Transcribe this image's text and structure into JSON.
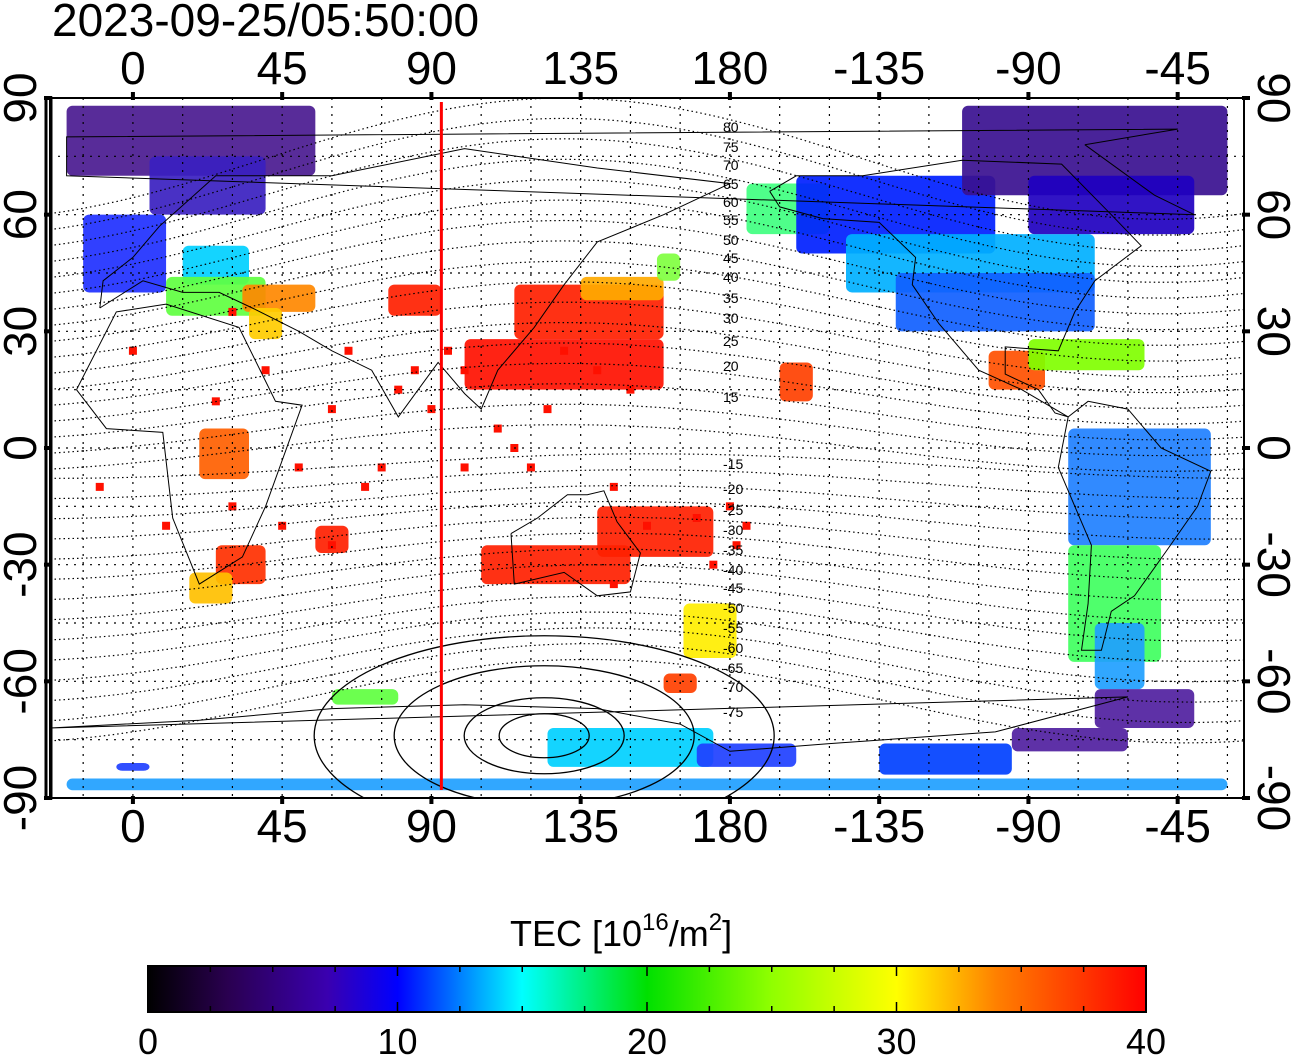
{
  "timestamp": "2023-09-25/05:50:00",
  "lon_ticks": [
    "0",
    "45",
    "90",
    "135",
    "180",
    "-135",
    "-90",
    "-45"
  ],
  "lat_ticks": [
    "90",
    "60",
    "30",
    "0",
    "-30",
    "-60",
    "-90"
  ],
  "contour_labels": [
    "80",
    "75",
    "70",
    "65",
    "60",
    "55",
    "50",
    "45",
    "40",
    "35",
    "30",
    "25",
    "20",
    "15",
    "-15",
    "-20",
    "-25",
    "-30",
    "-35",
    "-40",
    "-45",
    "-50",
    "-55",
    "-60",
    "-65",
    "-70",
    "-75"
  ],
  "colorbar": {
    "title_main": "TEC  [10",
    "title_sup1": "16",
    "title_mid": "/m",
    "title_sup2": "2",
    "title_end": "]",
    "tick_labels": [
      "0",
      "10",
      "20",
      "30",
      "40"
    ],
    "min": 0,
    "max": 40
  },
  "map": {
    "lon_range": [
      -25,
      335
    ],
    "lat_range": [
      -90,
      90
    ],
    "terminator_lon": 93,
    "colors": {
      "terminator": "#ff0000",
      "low": "#1a0033",
      "mid": "#00e0ff",
      "high": "#ff0000"
    }
  }
}
